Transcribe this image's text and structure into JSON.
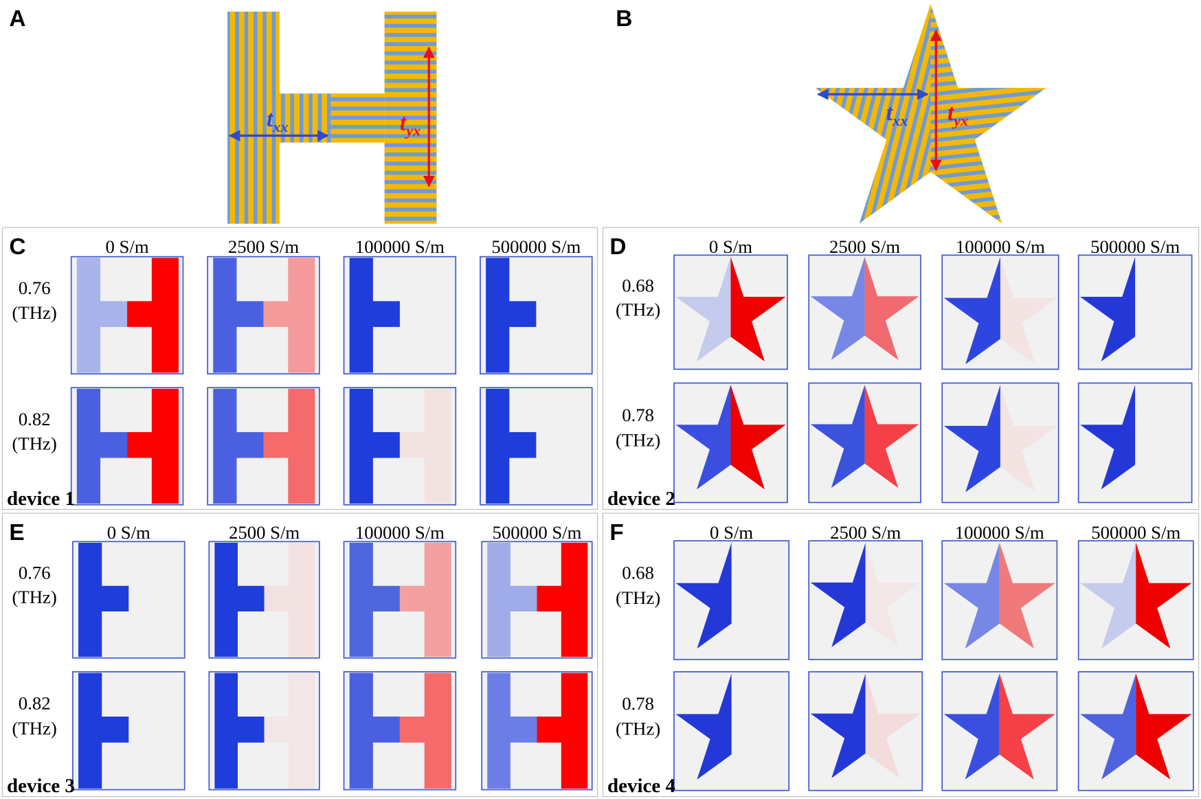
{
  "panel_a": {
    "label": "A",
    "arrows": [
      {
        "symbol": "t",
        "subscript": "xx"
      },
      {
        "symbol": "t",
        "subscript": "yx"
      }
    ]
  },
  "panel_b": {
    "label": "B",
    "arrows": [
      {
        "symbol": "t",
        "subscript": "xx"
      },
      {
        "symbol": "t",
        "subscript": "yx"
      }
    ]
  },
  "grids": [
    {
      "label": "C",
      "columns": [
        "0 S/m",
        "2500 S/m",
        "100000 S/m",
        "500000 S/m"
      ],
      "rows": [
        {
          "frequency": "0.76",
          "unit": "(THz)"
        },
        {
          "frequency": "0.82",
          "unit": "(THz)"
        }
      ],
      "device": "device 1"
    },
    {
      "label": "D",
      "columns": [
        "0 S/m",
        "2500 S/m",
        "100000 S/m",
        "500000 S/m"
      ],
      "rows": [
        {
          "frequency": "0.68",
          "unit": "(THz)"
        },
        {
          "frequency": "0.78",
          "unit": "(THz)"
        }
      ],
      "device": "device 2"
    },
    {
      "label": "E",
      "columns": [
        "0 S/m",
        "2500 S/m",
        "100000 S/m",
        "500000 S/m"
      ],
      "rows": [
        {
          "frequency": "0.76",
          "unit": "(THz)"
        },
        {
          "frequency": "0.82",
          "unit": "(THz)"
        }
      ],
      "device": "device 3"
    },
    {
      "label": "F",
      "columns": [
        "0 S/m",
        "2500 S/m",
        "100000 S/m",
        "500000 S/m"
      ],
      "rows": [
        {
          "frequency": "0.68",
          "unit": "(THz)"
        },
        {
          "frequency": "0.78",
          "unit": "(THz)"
        }
      ],
      "device": "device 4"
    }
  ]
}
